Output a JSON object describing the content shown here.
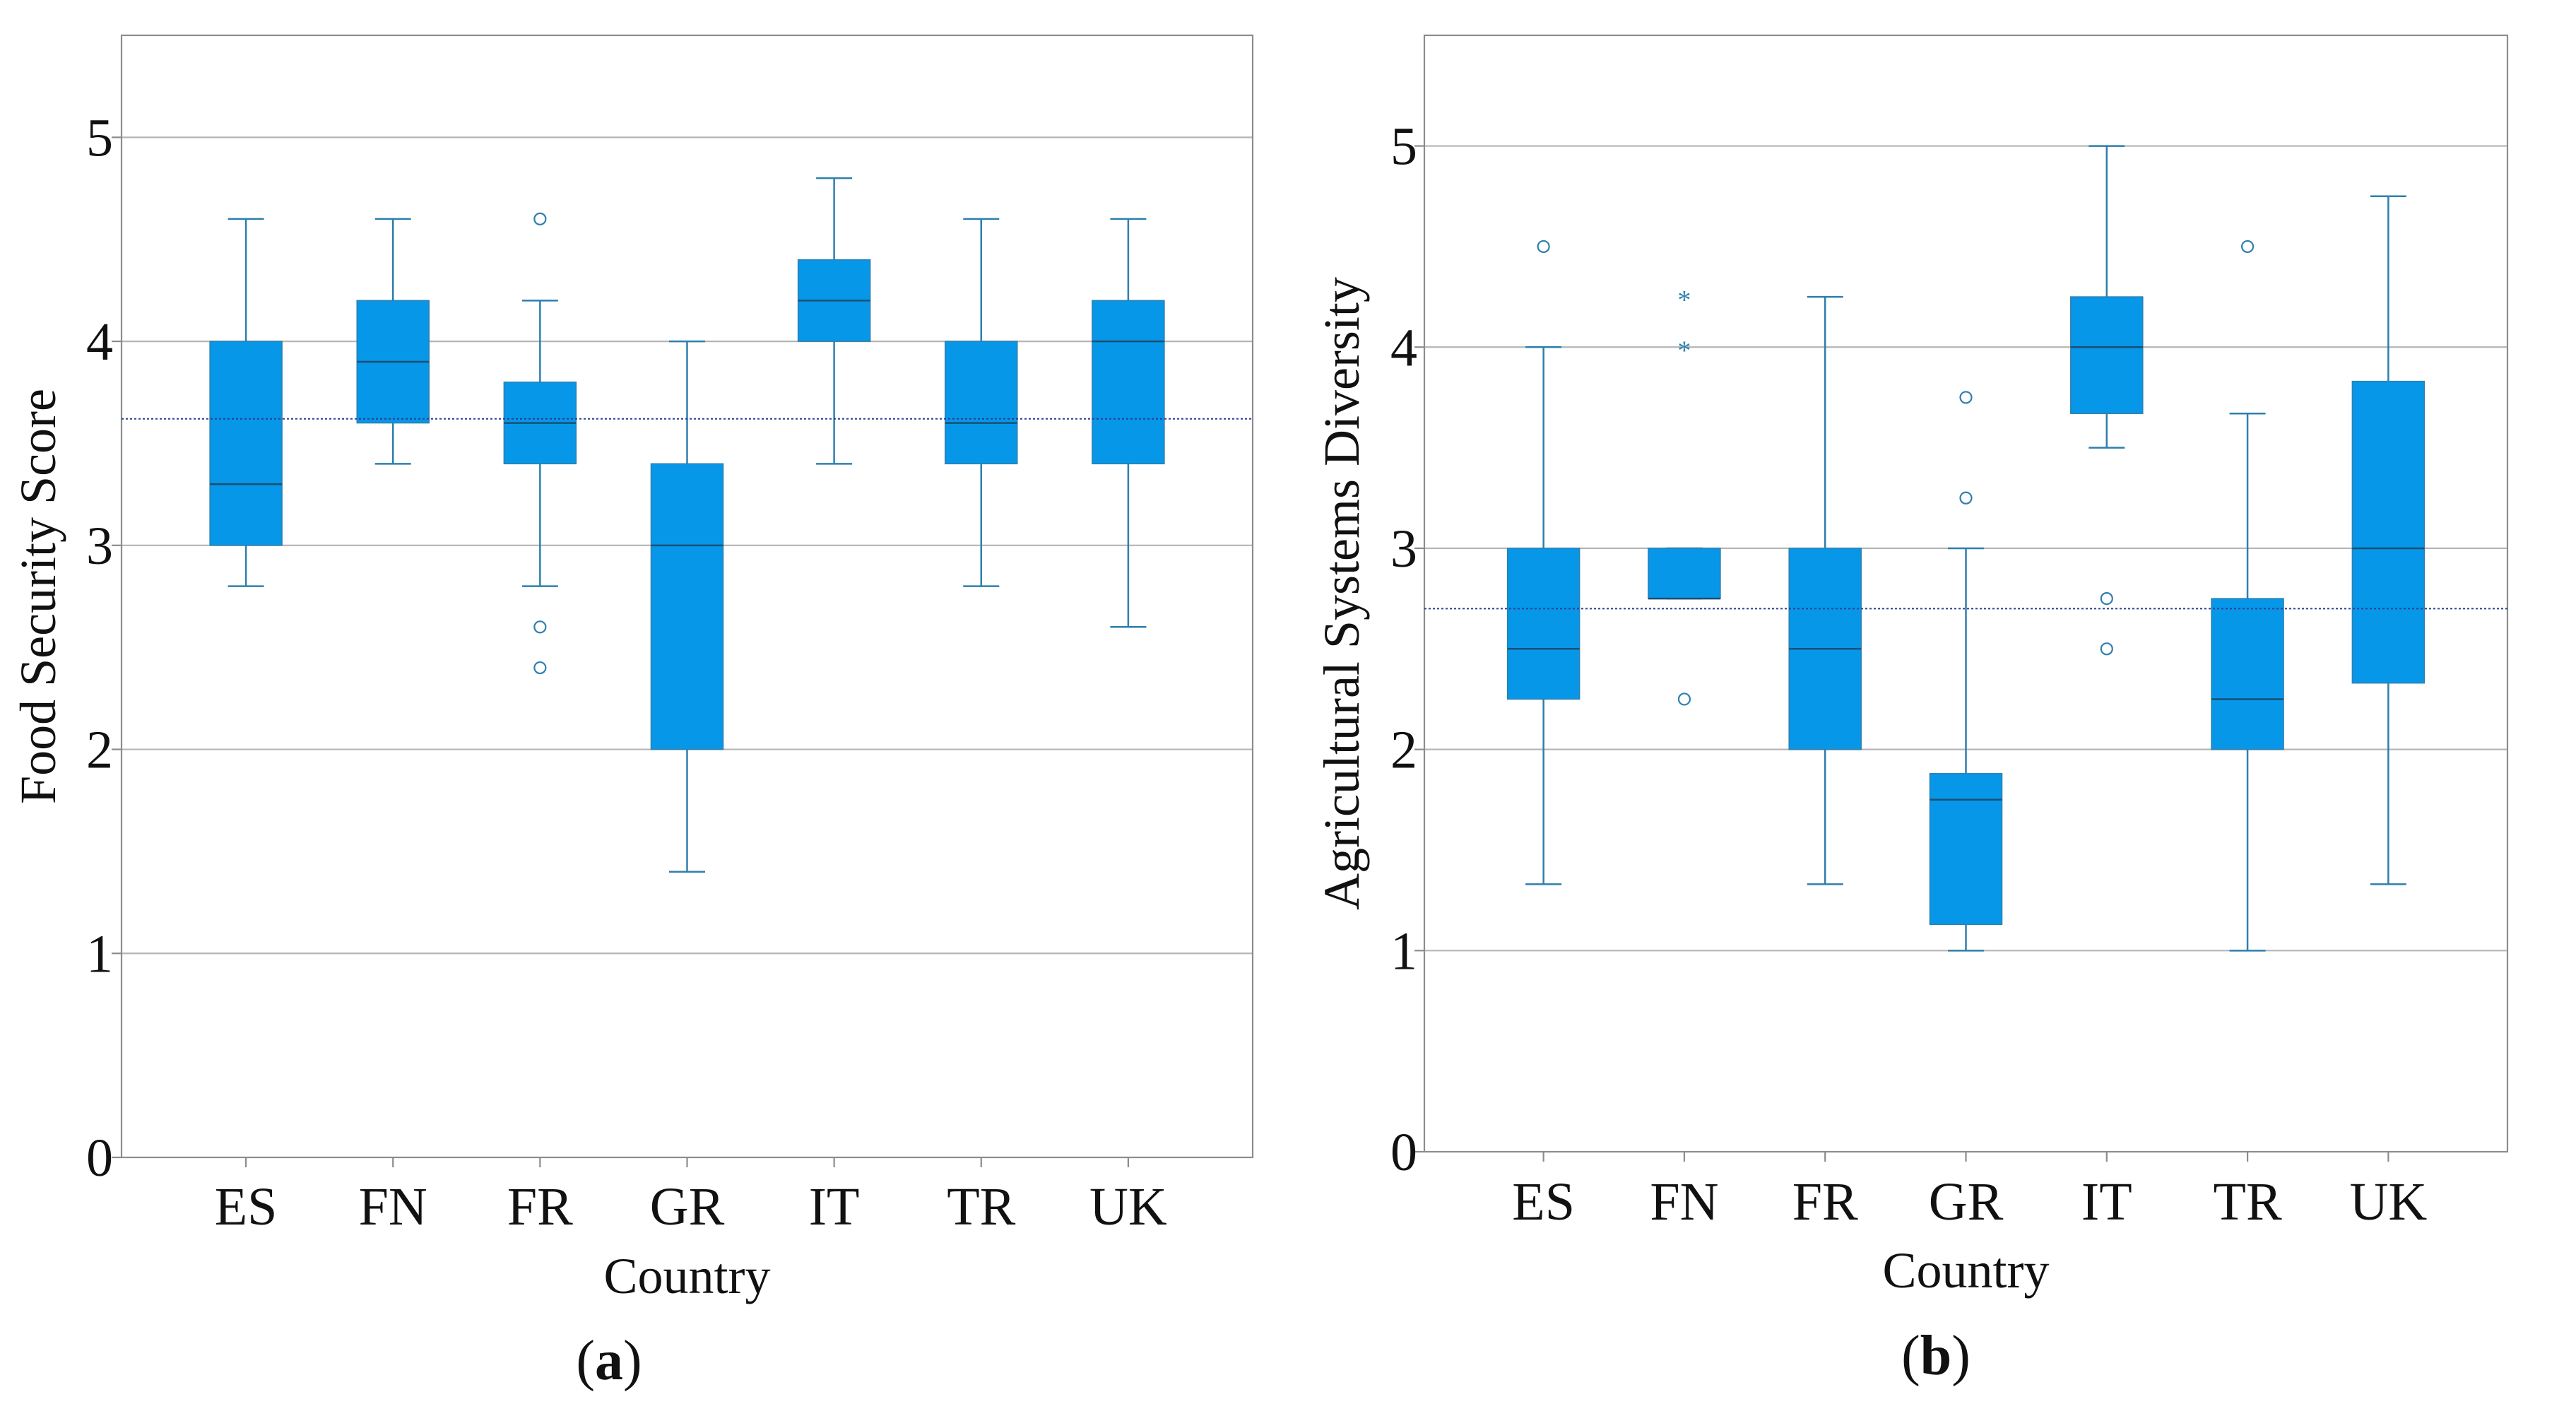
{
  "chart_data": [
    {
      "type": "box",
      "panel_label": "a",
      "xlabel": "Country",
      "ylabel": "Food Security Score",
      "ylim": [
        0,
        5.5
      ],
      "yticks": [
        0,
        1,
        2,
        3,
        4,
        5
      ],
      "grid": true,
      "reference_line": 3.62,
      "categories": [
        "ES",
        "FN",
        "FR",
        "GR",
        "IT",
        "TR",
        "UK"
      ],
      "boxes": [
        {
          "category": "ES",
          "whisker_low": 2.8,
          "q1": 3.0,
          "median": 3.3,
          "q3": 4.0,
          "whisker_high": 4.6,
          "outliers": [],
          "extremes": []
        },
        {
          "category": "FN",
          "whisker_low": 3.4,
          "q1": 3.6,
          "median": 3.9,
          "q3": 4.2,
          "whisker_high": 4.6,
          "outliers": [],
          "extremes": []
        },
        {
          "category": "FR",
          "whisker_low": 2.8,
          "q1": 3.4,
          "median": 3.6,
          "q3": 3.8,
          "whisker_high": 4.2,
          "outliers": [
            4.6,
            2.6,
            2.4
          ],
          "extremes": []
        },
        {
          "category": "GR",
          "whisker_low": 1.4,
          "q1": 2.0,
          "median": 3.0,
          "q3": 3.4,
          "whisker_high": 4.0,
          "outliers": [],
          "extremes": []
        },
        {
          "category": "IT",
          "whisker_low": 3.4,
          "q1": 4.0,
          "median": 4.2,
          "q3": 4.4,
          "whisker_high": 4.8,
          "outliers": [],
          "extremes": []
        },
        {
          "category": "TR",
          "whisker_low": 2.8,
          "q1": 3.4,
          "median": 3.6,
          "q3": 4.0,
          "whisker_high": 4.6,
          "outliers": [],
          "extremes": []
        },
        {
          "category": "UK",
          "whisker_low": 2.6,
          "q1": 3.4,
          "median": 4.0,
          "q3": 4.2,
          "whisker_high": 4.6,
          "outliers": [],
          "extremes": []
        }
      ]
    },
    {
      "type": "box",
      "panel_label": "b",
      "xlabel": "Country",
      "ylabel": "Agricultural Systems Diversity",
      "ylim": [
        0,
        5.55
      ],
      "yticks": [
        0,
        1,
        2,
        3,
        4,
        5
      ],
      "grid": true,
      "reference_line": 2.7,
      "categories": [
        "ES",
        "FN",
        "FR",
        "GR",
        "IT",
        "TR",
        "UK"
      ],
      "boxes": [
        {
          "category": "ES",
          "whisker_low": 1.33,
          "q1": 2.25,
          "median": 2.5,
          "q3": 3.0,
          "whisker_high": 4.0,
          "outliers": [
            4.5
          ],
          "extremes": []
        },
        {
          "category": "FN",
          "whisker_low": 2.75,
          "q1": 2.75,
          "median": 2.75,
          "q3": 3.0,
          "whisker_high": 3.0,
          "outliers": [
            2.25
          ],
          "extremes": [
            4.25,
            4.0
          ]
        },
        {
          "category": "FR",
          "whisker_low": 1.33,
          "q1": 2.0,
          "median": 2.5,
          "q3": 3.0,
          "whisker_high": 4.25,
          "outliers": [],
          "extremes": []
        },
        {
          "category": "GR",
          "whisker_low": 1.0,
          "q1": 1.13,
          "median": 1.75,
          "q3": 1.88,
          "whisker_high": 3.0,
          "outliers": [
            3.75,
            3.25
          ],
          "extremes": []
        },
        {
          "category": "IT",
          "whisker_low": 3.5,
          "q1": 3.67,
          "median": 4.0,
          "q3": 4.25,
          "whisker_high": 5.0,
          "outliers": [
            2.75,
            2.5
          ],
          "extremes": []
        },
        {
          "category": "TR",
          "whisker_low": 1.0,
          "q1": 2.0,
          "median": 2.25,
          "q3": 2.75,
          "whisker_high": 3.67,
          "outliers": [
            4.5
          ],
          "extremes": []
        },
        {
          "category": "UK",
          "whisker_low": 1.33,
          "q1": 2.33,
          "median": 3.0,
          "q3": 3.83,
          "whisker_high": 4.75,
          "outliers": [],
          "extremes": []
        }
      ]
    }
  ],
  "colors": {
    "box_fill": "#0797E8",
    "whisker": "#2E7FAE",
    "median": "#1B4F73",
    "grid": "#B5B5B5",
    "frame": "#8C8C8C",
    "reference": "#2B3F8F"
  },
  "extreme_marker": "*"
}
